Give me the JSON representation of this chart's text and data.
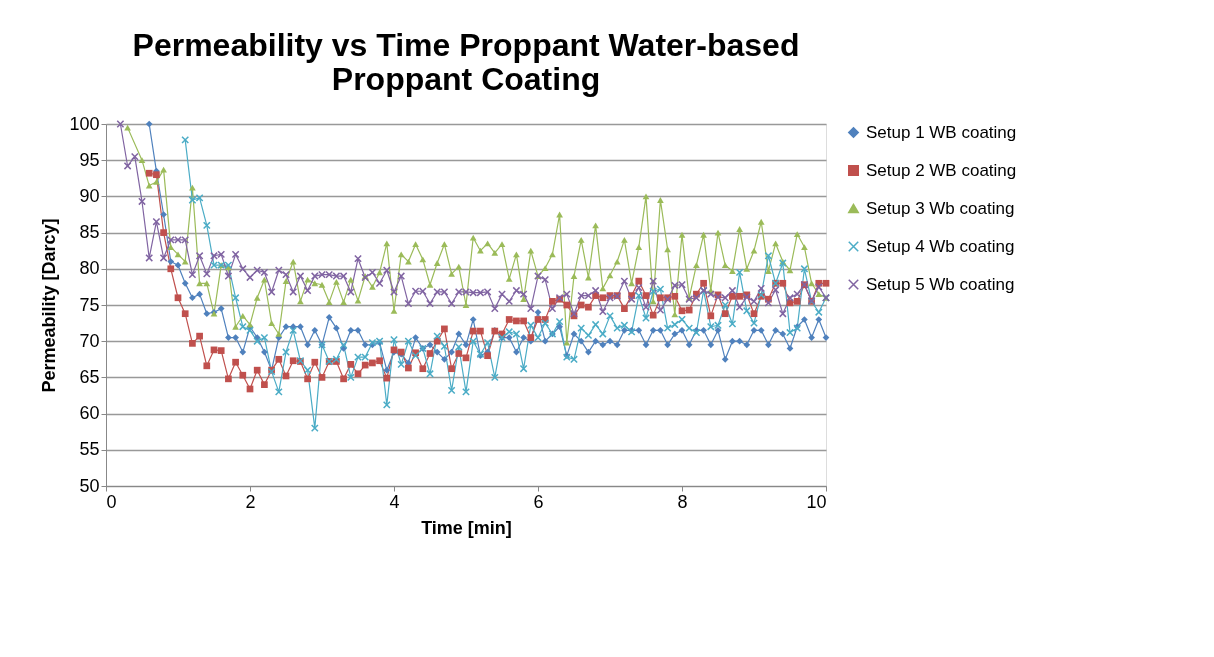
{
  "chart_data": {
    "type": "line",
    "title": "Permeability vs Time Proppant Water-based Proppant Coating",
    "xlabel": "Time [min]",
    "ylabel": "Permeability [Darcy]",
    "xlim": [
      0,
      10
    ],
    "xticks": [
      0,
      2,
      4,
      6,
      8,
      10
    ],
    "ylim": [
      50,
      100
    ],
    "yticks": [
      50,
      55,
      60,
      65,
      70,
      75,
      80,
      85,
      90,
      95,
      100
    ],
    "grid": "y",
    "legend": "right",
    "line_style": "solid",
    "series": [
      {
        "name": "Setup 1 WB coating",
        "color": "#4f81bd",
        "marker": "diamond",
        "x": [
          0.6,
          0.7,
          0.8,
          0.9,
          1.0,
          1.1,
          1.2,
          1.3,
          1.4,
          1.5,
          1.6,
          1.7,
          1.8,
          1.9,
          2.0,
          2.1,
          2.2,
          2.3,
          2.4,
          2.5,
          2.6,
          2.7,
          2.8,
          2.9,
          3.0,
          3.1,
          3.2,
          3.3,
          3.4,
          3.5,
          3.6,
          3.7,
          3.8,
          3.9,
          4.0,
          4.1,
          4.2,
          4.3,
          4.4,
          4.5,
          4.6,
          4.7,
          4.8,
          4.9,
          5.0,
          5.1,
          5.2,
          5.3,
          5.4,
          5.5,
          5.6,
          5.7,
          5.8,
          5.9,
          6.0,
          6.1,
          6.2,
          6.3,
          6.4,
          6.5,
          6.6,
          6.7,
          6.8,
          6.9,
          7.0,
          7.1,
          7.2,
          7.3,
          7.4,
          7.5,
          7.6,
          7.7,
          7.8,
          7.9,
          8.0,
          8.1,
          8.2,
          8.3,
          8.4,
          8.5,
          8.6,
          8.7,
          8.8,
          8.9,
          9.0,
          9.1,
          9.2,
          9.3,
          9.4,
          9.5,
          9.6,
          9.7,
          9.8,
          9.9,
          10.0
        ],
        "values": [
          100,
          93.5,
          87.5,
          81,
          80.5,
          78,
          76,
          76.5,
          73.8,
          74,
          74.5,
          70.5,
          70.5,
          68.5,
          72,
          70.5,
          68.5,
          66,
          70.5,
          72,
          72,
          72,
          69.5,
          71.5,
          69.5,
          73.3,
          71.8,
          69,
          71.5,
          71.5,
          69.5,
          69.5,
          69.8,
          66,
          68.5,
          68.2,
          67,
          70.5,
          69,
          69.5,
          68.5,
          67.5,
          68.5,
          71,
          69.5,
          73,
          68,
          68.5,
          71.5,
          70.5,
          70.5,
          68.5,
          70.5,
          70,
          74,
          70,
          71,
          72,
          68,
          71,
          70,
          68.5,
          70,
          69.5,
          70,
          69.5,
          71.5,
          71.5,
          71.5,
          69.5,
          71.5,
          71.5,
          69.5,
          71,
          71.5,
          69.5,
          71.5,
          71.5,
          69.5,
          71.5,
          67.5,
          70,
          70,
          69.5,
          71.5,
          71.5,
          69.5,
          71.5,
          71,
          69,
          72,
          73,
          70.5,
          73,
          70.5
        ]
      },
      {
        "name": "Setup 2 WB coating",
        "color": "#c0504d",
        "marker": "square",
        "x": [
          0.6,
          0.7,
          0.8,
          0.9,
          1.0,
          1.1,
          1.2,
          1.3,
          1.4,
          1.5,
          1.6,
          1.7,
          1.8,
          1.9,
          2.0,
          2.1,
          2.2,
          2.3,
          2.4,
          2.5,
          2.6,
          2.7,
          2.8,
          2.9,
          3.0,
          3.1,
          3.2,
          3.3,
          3.4,
          3.5,
          3.6,
          3.7,
          3.8,
          3.9,
          4.0,
          4.1,
          4.2,
          4.3,
          4.4,
          4.5,
          4.6,
          4.7,
          4.8,
          4.9,
          5.0,
          5.1,
          5.2,
          5.3,
          5.4,
          5.5,
          5.6,
          5.7,
          5.8,
          5.9,
          6.0,
          6.1,
          6.2,
          6.3,
          6.4,
          6.5,
          6.6,
          6.7,
          6.8,
          6.9,
          7.0,
          7.1,
          7.2,
          7.3,
          7.4,
          7.5,
          7.6,
          7.7,
          7.8,
          7.9,
          8.0,
          8.1,
          8.2,
          8.3,
          8.4,
          8.5,
          8.6,
          8.7,
          8.8,
          8.9,
          9.0,
          9.1,
          9.2,
          9.3,
          9.4,
          9.5,
          9.6,
          9.7,
          9.8,
          9.9,
          10.0
        ],
        "values": [
          93.2,
          93,
          85,
          80,
          76,
          73.8,
          69.7,
          70.7,
          66.6,
          68.8,
          68.7,
          64.8,
          67.1,
          65.3,
          63.4,
          66,
          64,
          66,
          67.5,
          65.2,
          67.3,
          67.2,
          64.8,
          67.1,
          65,
          67.2,
          67.2,
          64.8,
          66.8,
          65.5,
          66.7,
          67,
          67.3,
          64.9,
          68.8,
          68.5,
          66.3,
          68.4,
          66.2,
          68.3,
          70,
          71.7,
          66.2,
          68.3,
          67.7,
          71.4,
          71.4,
          68,
          71.4,
          71,
          73,
          72.8,
          72.8,
          70.5,
          73,
          73,
          75.5,
          75.8,
          75,
          73.5,
          75,
          74.7,
          76.3,
          76,
          76.3,
          76.3,
          74.5,
          76.3,
          78.3,
          76.3,
          73.6,
          76,
          76,
          76.2,
          74.2,
          74.3,
          76.5,
          78,
          73.5,
          76.4,
          73.8,
          76.2,
          76.2,
          76.4,
          73.8,
          76.2,
          75.8,
          78,
          78,
          75.3,
          75.5,
          77.8,
          75.5,
          78,
          78
        ]
      },
      {
        "name": "Setup 3 Wb coating",
        "color": "#9bbb59",
        "marker": "triangle",
        "x": [
          0.3,
          0.5,
          0.6,
          0.7,
          0.8,
          0.9,
          1.0,
          1.1,
          1.2,
          1.3,
          1.4,
          1.5,
          1.6,
          1.7,
          1.8,
          1.9,
          2.0,
          2.1,
          2.2,
          2.3,
          2.4,
          2.5,
          2.6,
          2.7,
          2.8,
          2.9,
          3.0,
          3.1,
          3.2,
          3.3,
          3.4,
          3.5,
          3.6,
          3.7,
          3.8,
          3.9,
          4.0,
          4.1,
          4.2,
          4.3,
          4.4,
          4.5,
          4.6,
          4.7,
          4.8,
          4.9,
          5.0,
          5.1,
          5.2,
          5.3,
          5.4,
          5.5,
          5.6,
          5.7,
          5.8,
          5.9,
          6.0,
          6.1,
          6.2,
          6.3,
          6.4,
          6.5,
          6.6,
          6.7,
          6.8,
          6.9,
          7.0,
          7.1,
          7.2,
          7.3,
          7.4,
          7.5,
          7.6,
          7.7,
          7.8,
          7.9,
          8.0,
          8.1,
          8.2,
          8.3,
          8.4,
          8.5,
          8.6,
          8.7,
          8.8,
          8.9,
          9.0,
          9.1,
          9.2,
          9.3,
          9.4,
          9.5,
          9.6,
          9.7,
          9.8,
          9.9,
          10.0
        ],
        "values": [
          99.5,
          95,
          91.5,
          92,
          93.7,
          83,
          82,
          81,
          91.2,
          78,
          78,
          73.8,
          80.5,
          80.2,
          72,
          73.5,
          72.3,
          76,
          78.5,
          72.5,
          71,
          78.3,
          81,
          75.5,
          78.5,
          78,
          77.8,
          75.4,
          78.2,
          75.4,
          78.5,
          75.6,
          79,
          77.5,
          79.5,
          83.5,
          74.2,
          82,
          81,
          83.4,
          81.3,
          77.8,
          80.8,
          83.4,
          79.3,
          80.3,
          75,
          84.3,
          82.5,
          83.5,
          82.2,
          83.4,
          78.6,
          82,
          75.8,
          82.5,
          79,
          80.1,
          82,
          87.5,
          69.8,
          79,
          84,
          78.8,
          86,
          77.3,
          79.1,
          81,
          84,
          78,
          83,
          90,
          75.5,
          89.5,
          82.7,
          73.7,
          84.7,
          76,
          80.5,
          84.7,
          77,
          85,
          80.5,
          79.7,
          85.5,
          80,
          82.5,
          86.5,
          79.7,
          83.5,
          81,
          79.8,
          84.8,
          83,
          78,
          76.5,
          76
        ]
      },
      {
        "name": "Setup 4 Wb coating",
        "color": "#4bacc6",
        "marker": "cross",
        "x": [
          1.1,
          1.2,
          1.3,
          1.4,
          1.5,
          1.6,
          1.7,
          1.8,
          1.9,
          2.0,
          2.1,
          2.2,
          2.3,
          2.4,
          2.5,
          2.6,
          2.7,
          2.8,
          2.9,
          3.0,
          3.1,
          3.2,
          3.3,
          3.4,
          3.5,
          3.6,
          3.7,
          3.8,
          3.9,
          4.0,
          4.1,
          4.2,
          4.3,
          4.4,
          4.5,
          4.6,
          4.7,
          4.8,
          4.9,
          5.0,
          5.1,
          5.2,
          5.3,
          5.4,
          5.5,
          5.6,
          5.7,
          5.8,
          5.9,
          6.0,
          6.1,
          6.2,
          6.3,
          6.4,
          6.5,
          6.6,
          6.7,
          6.8,
          6.9,
          7.0,
          7.1,
          7.2,
          7.3,
          7.4,
          7.5,
          7.6,
          7.7,
          7.8,
          7.9,
          8.0,
          8.1,
          8.2,
          8.3,
          8.4,
          8.5,
          8.6,
          8.7,
          8.8,
          8.9,
          9.0,
          9.1,
          9.2,
          9.3,
          9.4,
          9.5,
          9.6,
          9.7,
          9.8,
          9.9,
          10.0
        ],
        "values": [
          97.8,
          89.5,
          89.8,
          86,
          80.5,
          80.5,
          80.5,
          76,
          72,
          71.5,
          70,
          70.5,
          65.8,
          63,
          68.5,
          71.5,
          67.3,
          66,
          58,
          69.5,
          67.2,
          67.5,
          69.5,
          65,
          67.8,
          67.8,
          69.8,
          70,
          61.2,
          70.2,
          66.8,
          70,
          68,
          69,
          65.5,
          70.7,
          69.3,
          63.2,
          69.2,
          63,
          70,
          68.2,
          69.8,
          65,
          70.5,
          71.3,
          71,
          66.2,
          72.2,
          70.5,
          72.5,
          71,
          72.7,
          67.8,
          67.5,
          71.8,
          70.8,
          72.3,
          71,
          73.5,
          71.8,
          72.2,
          71.3,
          76.3,
          73.2,
          76.9,
          77.2,
          71.8,
          72.3,
          73,
          71.8,
          71.2,
          77,
          72,
          72.2,
          75,
          72.4,
          79.5,
          74.2,
          72.5,
          76.4,
          81.8,
          78,
          80.8,
          71.2,
          71.8,
          80,
          75.5,
          74,
          76
        ]
      },
      {
        "name": "Setup 5 Wb coating",
        "color": "#8064a2",
        "marker": "cross",
        "x": [
          0.2,
          0.3,
          0.4,
          0.5,
          0.6,
          0.7,
          0.8,
          0.9,
          1.0,
          1.1,
          1.2,
          1.3,
          1.4,
          1.5,
          1.6,
          1.7,
          1.8,
          1.9,
          2.0,
          2.1,
          2.2,
          2.3,
          2.4,
          2.5,
          2.6,
          2.7,
          2.8,
          2.9,
          3.0,
          3.1,
          3.2,
          3.3,
          3.4,
          3.5,
          3.6,
          3.7,
          3.8,
          3.9,
          4.0,
          4.1,
          4.2,
          4.3,
          4.4,
          4.5,
          4.6,
          4.7,
          4.8,
          4.9,
          5.0,
          5.1,
          5.2,
          5.3,
          5.4,
          5.5,
          5.6,
          5.7,
          5.8,
          5.9,
          6.0,
          6.1,
          6.2,
          6.3,
          6.4,
          6.5,
          6.6,
          6.7,
          6.8,
          6.9,
          7.0,
          7.1,
          7.2,
          7.3,
          7.4,
          7.5,
          7.6,
          7.7,
          7.8,
          7.9,
          8.0,
          8.1,
          8.2,
          8.3,
          8.4,
          8.5,
          8.6,
          8.7,
          8.8,
          8.9,
          9.0,
          9.1,
          9.2,
          9.3,
          9.4,
          9.5,
          9.6,
          9.7,
          9.8,
          9.9,
          10.0
        ],
        "values": [
          100,
          94.2,
          95.5,
          89.3,
          81.5,
          86.5,
          81.5,
          84,
          84,
          84,
          79.2,
          81.8,
          79.3,
          81.8,
          82,
          79,
          82,
          80,
          78.8,
          79.8,
          79.5,
          76.8,
          79.8,
          79.2,
          76.8,
          79,
          77,
          79,
          79.2,
          79.2,
          79,
          79,
          76.8,
          81.4,
          78.8,
          79.5,
          78,
          79.8,
          76.8,
          79,
          75.2,
          76.9,
          76.9,
          75.2,
          76.8,
          76.8,
          75.2,
          76.8,
          76.8,
          76.7,
          76.7,
          76.8,
          74.5,
          76.5,
          75.5,
          77,
          76.5,
          74.5,
          79,
          78.5,
          74.5,
          76,
          76.5,
          73.8,
          76.3,
          76.3,
          77,
          74.1,
          76,
          76.2,
          78.3,
          75.8,
          77.4,
          74.7,
          78.3,
          74.3,
          75.8,
          77.7,
          77.8,
          75.8,
          76,
          77,
          76.5,
          76.1,
          76,
          77,
          74.7,
          76.1,
          75.5,
          77.3,
          75.3,
          77.1,
          73.8,
          76,
          76.5,
          77.8,
          75.6,
          77.5,
          76
        ]
      }
    ]
  }
}
